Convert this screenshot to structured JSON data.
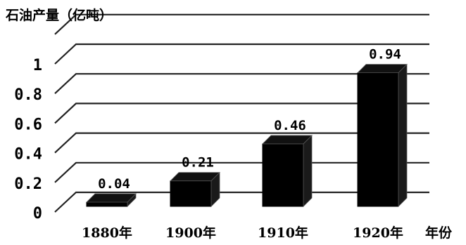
{
  "chart_data": {
    "type": "bar",
    "title": "",
    "ylabel": "石油产量（亿吨）",
    "xlabel": "年份",
    "categories": [
      "1880年",
      "1900年",
      "1910年",
      "1920年"
    ],
    "values": [
      0.04,
      0.21,
      0.46,
      0.94
    ],
    "data_labels": [
      "0.04",
      "0.21",
      "0.46",
      "0.94"
    ],
    "y_ticks": [
      0,
      0.2,
      0.4,
      0.6,
      0.8,
      1
    ],
    "y_tick_labels": [
      "0",
      "0.2",
      "0.4",
      "0.6",
      "0.8",
      "1"
    ],
    "ylim": [
      0,
      1.2
    ],
    "grid": true,
    "legend": "none",
    "bar_color": "#000000",
    "style": "3d"
  }
}
